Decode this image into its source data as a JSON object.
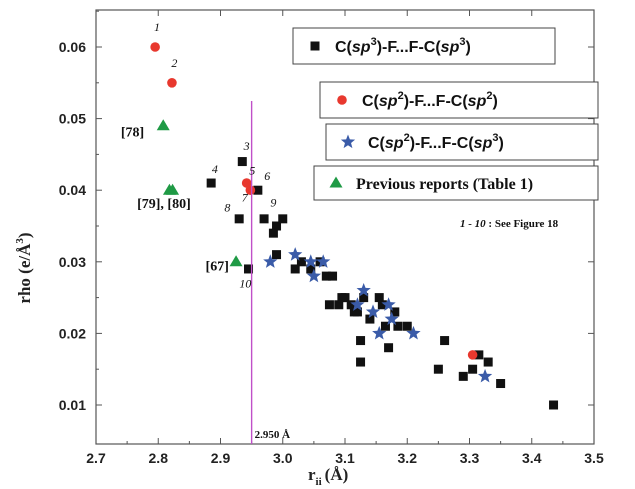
{
  "chart_data": {
    "type": "scatter",
    "xlabel": "r",
    "xlabel_sub": "ii",
    "xlabel_unit": "(Å)",
    "ylabel": "rho (e/Å",
    "ylabel_sup": "3",
    "ylabel_close": ")",
    "xlim": [
      2.7,
      3.5
    ],
    "ylim": [
      0.005,
      0.07
    ],
    "xticks": [
      "2.7",
      "2.8",
      "2.9",
      "3.0",
      "3.1",
      "3.2",
      "3.3",
      "3.4",
      "3.5"
    ],
    "yticks": [
      "0.01",
      "0.02",
      "0.03",
      "0.04",
      "0.05",
      "0.06"
    ],
    "vline": {
      "x": 2.95,
      "label": "2.950 Å",
      "color": "#c050c8"
    },
    "series": [
      {
        "name_parts": [
          "C(",
          "sp",
          "3",
          ")-F...F-C(",
          "sp",
          "3",
          ")"
        ],
        "marker": "square",
        "color": "#111111",
        "points": [
          [
            2.885,
            0.041
          ],
          [
            2.93,
            0.036
          ],
          [
            2.935,
            0.044
          ],
          [
            2.945,
            0.029
          ],
          [
            2.96,
            0.04
          ],
          [
            2.97,
            0.036
          ],
          [
            2.985,
            0.034
          ],
          [
            2.99,
            0.035
          ],
          [
            2.99,
            0.031
          ],
          [
            3.0,
            0.036
          ],
          [
            3.02,
            0.029
          ],
          [
            3.03,
            0.03
          ],
          [
            3.045,
            0.029
          ],
          [
            3.06,
            0.03
          ],
          [
            3.07,
            0.028
          ],
          [
            3.075,
            0.024
          ],
          [
            3.08,
            0.028
          ],
          [
            3.09,
            0.024
          ],
          [
            3.095,
            0.025
          ],
          [
            3.1,
            0.025
          ],
          [
            3.11,
            0.024
          ],
          [
            3.115,
            0.023
          ],
          [
            3.12,
            0.023
          ],
          [
            3.125,
            0.019
          ],
          [
            3.125,
            0.016
          ],
          [
            3.13,
            0.025
          ],
          [
            3.14,
            0.022
          ],
          [
            3.155,
            0.025
          ],
          [
            3.16,
            0.024
          ],
          [
            3.165,
            0.021
          ],
          [
            3.17,
            0.018
          ],
          [
            3.18,
            0.023
          ],
          [
            3.185,
            0.021
          ],
          [
            3.2,
            0.021
          ],
          [
            3.25,
            0.015
          ],
          [
            3.26,
            0.019
          ],
          [
            3.29,
            0.014
          ],
          [
            3.305,
            0.015
          ],
          [
            3.315,
            0.017
          ],
          [
            3.33,
            0.016
          ],
          [
            3.35,
            0.013
          ],
          [
            3.435,
            0.01
          ]
        ]
      },
      {
        "name_parts": [
          "C(",
          "sp",
          "2",
          ")-F...F-C(",
          "sp",
          "2",
          ")"
        ],
        "marker": "circle",
        "color": "#e8382e",
        "points": [
          [
            2.795,
            0.06
          ],
          [
            2.822,
            0.055
          ],
          [
            2.942,
            0.041
          ],
          [
            2.948,
            0.04
          ],
          [
            3.305,
            0.017
          ]
        ]
      },
      {
        "name_parts": [
          "C(",
          "sp",
          "2",
          ")-F...F-C(",
          "sp",
          "3",
          ")"
        ],
        "marker": "star",
        "color": "#3a5ba8",
        "points": [
          [
            2.98,
            0.03
          ],
          [
            3.02,
            0.031
          ],
          [
            3.045,
            0.03
          ],
          [
            3.05,
            0.028
          ],
          [
            3.065,
            0.03
          ],
          [
            3.12,
            0.024
          ],
          [
            3.13,
            0.026
          ],
          [
            3.145,
            0.023
          ],
          [
            3.155,
            0.02
          ],
          [
            3.17,
            0.024
          ],
          [
            3.175,
            0.022
          ],
          [
            3.21,
            0.02
          ],
          [
            3.325,
            0.014
          ]
        ]
      },
      {
        "name_parts": [
          "Previous reports (Table 1)"
        ],
        "marker": "triangle",
        "color": "#1f9a45",
        "points": [
          [
            2.808,
            0.049
          ],
          [
            2.818,
            0.04
          ],
          [
            2.823,
            0.04
          ],
          [
            2.925,
            0.03
          ]
        ]
      }
    ],
    "point_numbers": [
      {
        "text": "1",
        "x": 2.798,
        "y": 0.0622
      },
      {
        "text": "2",
        "x": 2.826,
        "y": 0.0572
      },
      {
        "text": "3",
        "x": 2.942,
        "y": 0.0456
      },
      {
        "text": "4",
        "x": 2.891,
        "y": 0.0424
      },
      {
        "text": "5",
        "x": 2.951,
        "y": 0.0422
      },
      {
        "text": "6",
        "x": 2.975,
        "y": 0.0414
      },
      {
        "text": "7",
        "x": 2.939,
        "y": 0.0384
      },
      {
        "text": "8",
        "x": 2.911,
        "y": 0.037
      },
      {
        "text": "9",
        "x": 2.985,
        "y": 0.0377
      },
      {
        "text": "10",
        "x": 2.94,
        "y": 0.0264
      }
    ],
    "references": [
      {
        "text": "[78]",
        "x": 2.74,
        "y": 0.0475
      },
      {
        "text": "[79], [80]",
        "x": 2.766,
        "y": 0.0375
      },
      {
        "text": "[67]",
        "x": 2.876,
        "y": 0.0288
      }
    ],
    "note": {
      "text": "1 - 10",
      "suffix": " : See Figure 18"
    },
    "legend_placement": "top-right"
  }
}
